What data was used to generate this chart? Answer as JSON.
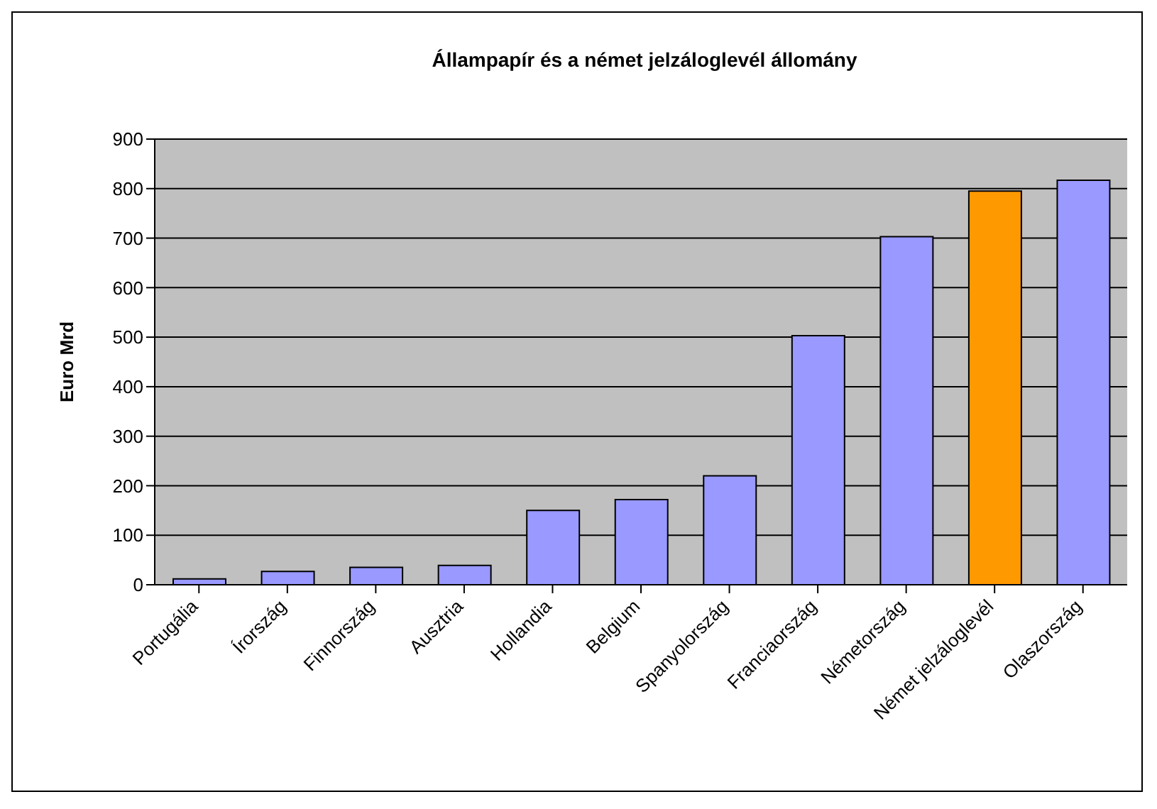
{
  "chart_data": {
    "type": "bar",
    "title": "Állampapír és a német jelzáloglevél állomány",
    "ylabel": "Euro Mrd",
    "categories": [
      "Portugália",
      "Írország",
      "Finnország",
      "Ausztria",
      "Hollandia",
      "Belgium",
      "Spanyolország",
      "Franciaország",
      "Németország",
      "Német jelzáloglevél",
      "Olaszország"
    ],
    "values": [
      12,
      27,
      35,
      39,
      150,
      172,
      220,
      503,
      703,
      795,
      817
    ],
    "colors": [
      "#9999ff",
      "#9999ff",
      "#9999ff",
      "#9999ff",
      "#9999ff",
      "#9999ff",
      "#9999ff",
      "#9999ff",
      "#9999ff",
      "#ff9900",
      "#9999ff"
    ],
    "ylim": [
      0,
      900
    ],
    "yticks": [
      0,
      100,
      200,
      300,
      400,
      500,
      600,
      700,
      800,
      900
    ],
    "grid": "y",
    "legend": false
  }
}
